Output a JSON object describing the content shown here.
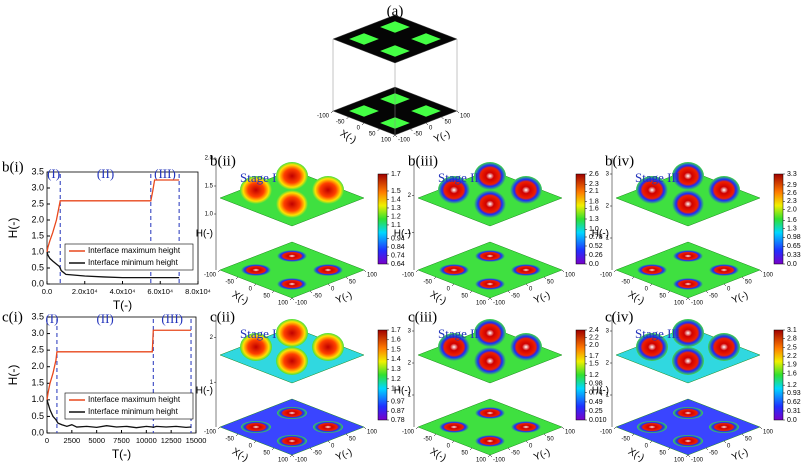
{
  "chart_data": [
    {
      "type": "line",
      "label": "b(i)",
      "xlabel": "T(-)",
      "ylabel": "H(-)",
      "x": [
        0,
        500,
        1500,
        3000,
        5000,
        6500,
        7000,
        7500,
        10000,
        20000,
        30000,
        40000,
        50000,
        55000,
        56000,
        57000,
        60000,
        65000,
        70000
      ],
      "series": [
        {
          "name": "Interface maximum height",
          "color": "#e8471c",
          "values": [
            1.0,
            1.15,
            1.35,
            1.6,
            2.0,
            2.45,
            2.6,
            2.6,
            2.6,
            2.6,
            2.6,
            2.6,
            2.6,
            2.6,
            2.9,
            3.25,
            3.25,
            3.25,
            3.25
          ]
        },
        {
          "name": "Interface minimum height",
          "color": "#111111",
          "values": [
            1.0,
            0.9,
            0.8,
            0.72,
            0.62,
            0.55,
            0.5,
            0.42,
            0.3,
            0.25,
            0.22,
            0.2,
            0.2,
            0.2,
            0.2,
            0.2,
            0.2,
            0.2,
            0.2
          ]
        }
      ],
      "xlim": [
        0,
        80000
      ],
      "xticks": [
        {
          "value": 0,
          "label": "0.0"
        },
        {
          "value": 20000,
          "label": "2.0x10⁴"
        },
        {
          "value": 40000,
          "label": "4.0x10⁴"
        },
        {
          "value": 60000,
          "label": "6.0x10⁴"
        },
        {
          "value": 80000,
          "label": "8.0x10⁴"
        }
      ],
      "ylim": [
        0,
        3.5
      ],
      "yticks": [
        {
          "value": 0,
          "label": "0.0"
        },
        0.5,
        {
          "value": 1,
          "label": "1.0"
        },
        1.5,
        {
          "value": 2,
          "label": "2.0"
        },
        2.5,
        {
          "value": 3,
          "label": "3.0"
        },
        3.5
      ],
      "stage_lines": [
        7000,
        55000,
        70000
      ],
      "stage_labels": [
        "(I)",
        "(II)",
        "(III)"
      ]
    },
    {
      "type": "line",
      "label": "c(i)",
      "xlabel": "T(-)",
      "ylabel": "H(-)",
      "x": [
        0,
        100,
        300,
        600,
        900,
        1000,
        1100,
        1500,
        2000,
        2500,
        3000,
        4000,
        5000,
        6000,
        7000,
        8000,
        9000,
        10000,
        10600,
        10700,
        11000,
        12000,
        13000,
        14000,
        14500
      ],
      "series": [
        {
          "name": "Interface maximum height",
          "color": "#e8471c",
          "values": [
            1.0,
            1.2,
            1.5,
            1.8,
            2.2,
            2.45,
            2.45,
            2.45,
            2.45,
            2.45,
            2.45,
            2.45,
            2.45,
            2.45,
            2.45,
            2.45,
            2.45,
            2.45,
            2.45,
            3.1,
            3.1,
            3.1,
            3.1,
            3.1,
            3.1
          ]
        },
        {
          "name": "Interface minimum height",
          "color": "#111111",
          "values": [
            1.0,
            0.9,
            0.7,
            0.5,
            0.4,
            0.35,
            0.3,
            0.25,
            0.2,
            0.25,
            0.18,
            0.2,
            0.17,
            0.22,
            0.18,
            0.2,
            0.16,
            0.2,
            0.18,
            0.17,
            0.2,
            0.18,
            0.2,
            0.17,
            0.18
          ]
        }
      ],
      "xlim": [
        0,
        15000
      ],
      "xticks": [
        0,
        2500,
        5000,
        7500,
        10000,
        12500,
        15000
      ],
      "ylim": [
        0,
        3.5
      ],
      "yticks": [
        {
          "value": 0,
          "label": "0.0"
        },
        0.5,
        {
          "value": 1,
          "label": "1.0"
        },
        1.5,
        {
          "value": 2,
          "label": "2.0"
        },
        2.5,
        {
          "value": 3,
          "label": "3.0"
        },
        3.5
      ],
      "stage_lines": [
        1000,
        10700,
        14500
      ],
      "stage_labels": [
        "(I)",
        "(II)",
        "(III)"
      ]
    }
  ],
  "surface_panels": [
    {
      "label": "(a)",
      "x_label": "X(-)",
      "y_label": "Y(-)",
      "xlim": [
        -100,
        100
      ],
      "x_ticks": [
        -100,
        -50,
        0,
        50,
        100
      ],
      "y_ticks": [
        -100,
        -50,
        0,
        50,
        100
      ]
    },
    {
      "label": "b(ii)",
      "title": "Stage I",
      "x_label": "X(-)",
      "y_label": "Y(-)",
      "h_label": "H(-)",
      "xlim": [
        -100,
        100
      ],
      "x_ticks": [
        -100,
        -50,
        0,
        50,
        100
      ],
      "y_ticks": [
        -100,
        -50,
        0,
        50,
        100
      ],
      "hlim": [
        0,
        2
      ],
      "h_ticks": [
        {
          "value": 1,
          "label": "1.0"
        },
        1.5,
        {
          "value": 2,
          "label": "2.0"
        }
      ],
      "colorbar_ticks": [
        1.7,
        1.5,
        1.4,
        1.3,
        1.2,
        1.1,
        0.94,
        0.84,
        0.74,
        0.64
      ]
    },
    {
      "label": "b(iii)",
      "title": "Stage II",
      "x_label": "X(-)",
      "y_label": "Y(-)",
      "h_label": "H(-)",
      "xlim": [
        -100,
        100
      ],
      "x_ticks": [
        -100,
        -50,
        0,
        50,
        100
      ],
      "y_ticks": [
        -100,
        -50,
        0,
        50,
        100
      ],
      "hlim": [
        0,
        3
      ],
      "h_ticks": [
        1,
        2
      ],
      "colorbar_ticks": [
        2.6,
        2.3,
        2.1,
        1.8,
        1.6,
        1.3,
        {
          "value": 1,
          "label": "1.0"
        },
        0.78,
        0.52,
        0.26,
        {
          "value": 0,
          "label": "0.0"
        }
      ]
    },
    {
      "label": "b(iv)",
      "title": "Stage III",
      "x_label": "X(-)",
      "y_label": "Y(-)",
      "h_label": "H(-)",
      "xlim": [
        -100,
        100
      ],
      "x_ticks": [
        -100,
        -50,
        0,
        50,
        100
      ],
      "y_ticks": [
        -100,
        -50,
        0,
        50,
        100
      ],
      "hlim": [
        0,
        3.5
      ],
      "h_ticks": [
        1,
        2,
        3
      ],
      "colorbar_ticks": [
        3.3,
        2.9,
        2.6,
        2.3,
        {
          "value": 2,
          "label": "2.0"
        },
        1.6,
        1.3,
        0.98,
        0.65,
        0.33,
        {
          "value": 0,
          "label": "0.0"
        }
      ]
    },
    {
      "label": "c(ii)",
      "title": "Stage I",
      "x_label": "X(-)",
      "y_label": "Y(-)",
      "h_label": "H(-)",
      "xlim": [
        -100,
        100
      ],
      "x_ticks": [
        -100,
        -50,
        0,
        50,
        100
      ],
      "y_ticks": [
        -100,
        -50,
        0,
        50,
        100
      ],
      "hlim": [
        0,
        2.5
      ],
      "h_ticks": [
        1,
        2
      ],
      "colorbar_ticks": [
        1.7,
        1.6,
        1.5,
        1.4,
        1.3,
        1.2,
        1.1,
        0.97,
        0.87,
        0.78
      ]
    },
    {
      "label": "c(iii)",
      "title": "Stage II",
      "x_label": "X(-)",
      "y_label": "Y(-)",
      "h_label": "H(-)",
      "xlim": [
        -100,
        100
      ],
      "x_ticks": [
        -100,
        -50,
        0,
        50,
        100
      ],
      "y_ticks": [
        -100,
        -50,
        0,
        50,
        100
      ],
      "hlim": [
        0,
        3.5
      ],
      "h_ticks": [
        1,
        2,
        3
      ],
      "colorbar_ticks": [
        2.4,
        2.2,
        {
          "value": 2,
          "label": "2.0"
        },
        1.7,
        1.5,
        1.2,
        0.98,
        0.74,
        0.49,
        0.25,
        {
          "value": 0.01,
          "label": "0.010"
        }
      ]
    },
    {
      "label": "c(iv)",
      "title": "Stage III",
      "x_label": "X(-)",
      "y_label": "Y(-)",
      "h_label": "H(-)",
      "xlim": [
        -100,
        100
      ],
      "x_ticks": [
        -100,
        -50,
        0,
        50,
        100
      ],
      "y_ticks": [
        -100,
        -50,
        0,
        50,
        100
      ],
      "hlim": [
        0,
        3.5
      ],
      "h_ticks": [
        1,
        2,
        3
      ],
      "colorbar_ticks": [
        3.1,
        2.8,
        2.5,
        2.2,
        1.9,
        1.6,
        1.2,
        0.93,
        0.62,
        0.31,
        {
          "value": 0,
          "label": "0.0"
        }
      ]
    }
  ]
}
